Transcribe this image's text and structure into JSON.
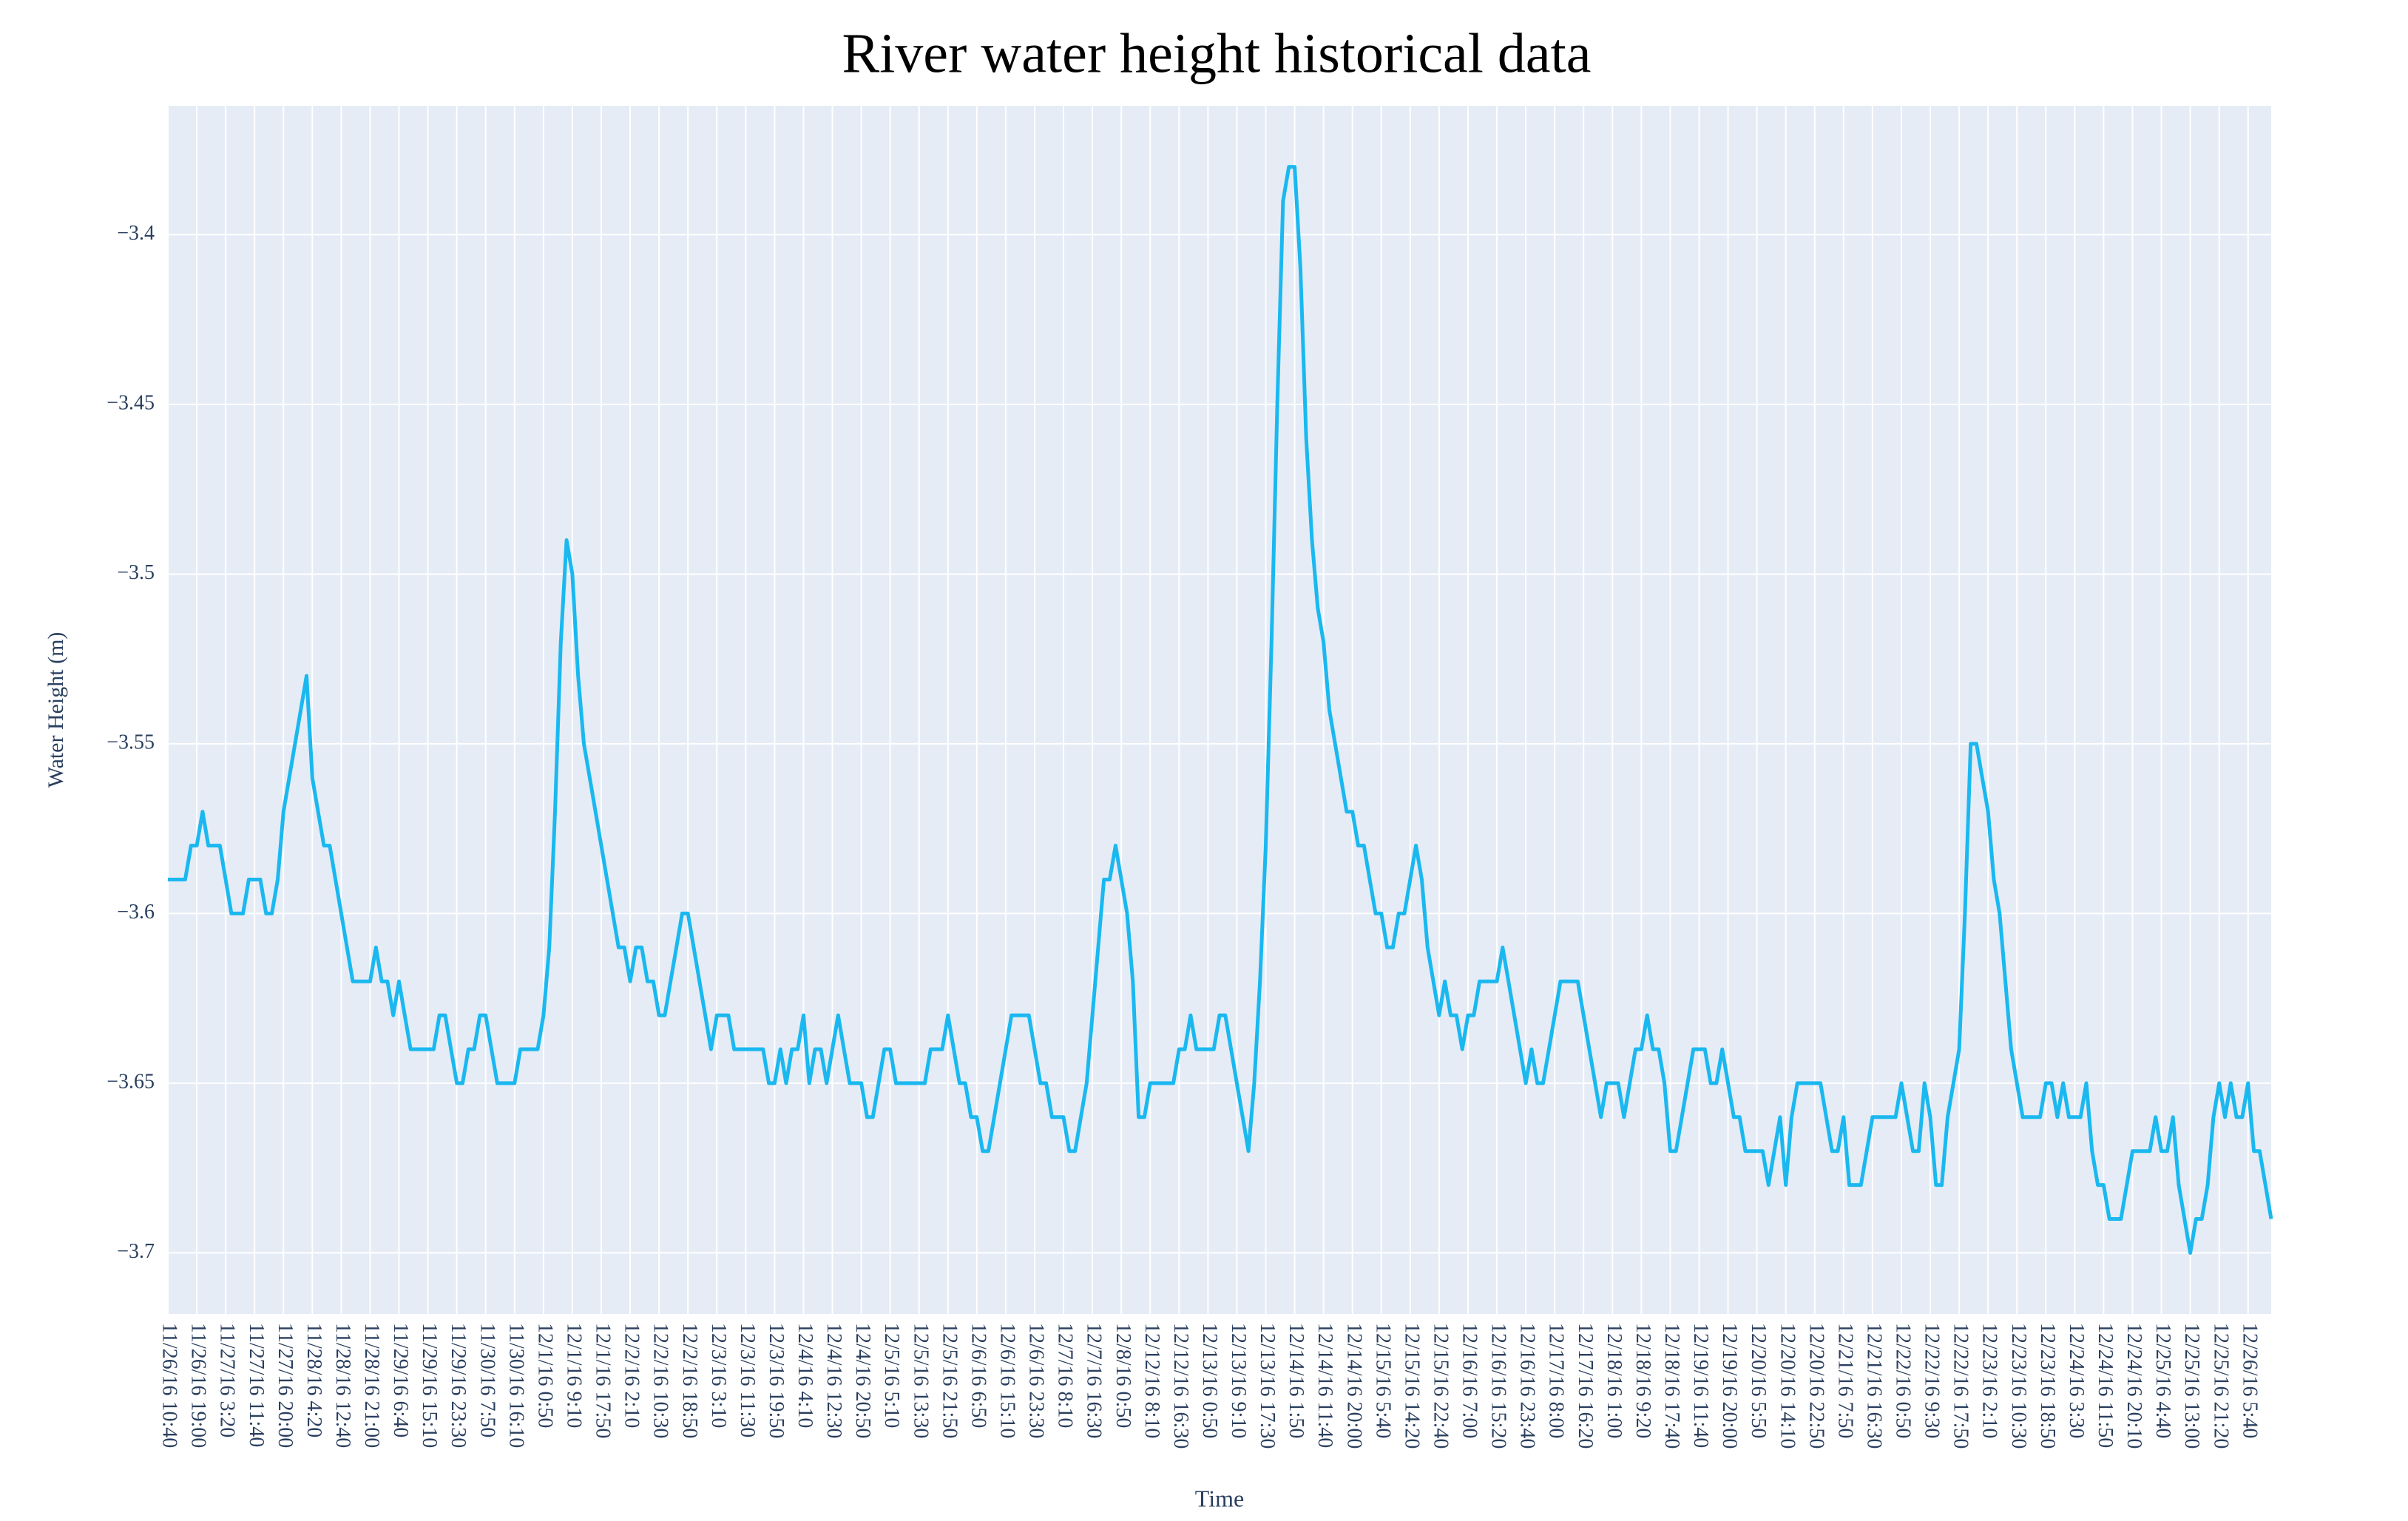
{
  "chart_data": {
    "type": "line",
    "title": "River water height historical data",
    "x_label": "Time",
    "y_label": "Water Height (m)",
    "color": "#1bb8f0",
    "grid": true,
    "ylim": [
      -3.718,
      -3.362
    ],
    "yticks": [
      {
        "value": -3.7,
        "label": "−3.7"
      },
      {
        "value": -3.65,
        "label": "−3.65"
      },
      {
        "value": -3.6,
        "label": "−3.6"
      },
      {
        "value": -3.55,
        "label": "−3.55"
      },
      {
        "value": -3.5,
        "label": "−3.5"
      },
      {
        "value": -3.45,
        "label": "−3.45"
      },
      {
        "value": -3.4,
        "label": "−3.4"
      }
    ],
    "categories": [
      "11/26/16 10:40",
      null,
      null,
      null,
      null,
      "11/26/16 19:00",
      null,
      null,
      null,
      null,
      "11/27/16 3:20",
      null,
      null,
      null,
      null,
      "11/27/16 11:40",
      null,
      null,
      null,
      null,
      "11/27/16 20:00",
      null,
      null,
      null,
      null,
      "11/28/16 4:20",
      null,
      null,
      null,
      null,
      "11/28/16 12:40",
      null,
      null,
      null,
      null,
      "11/28/16 21:00",
      null,
      null,
      null,
      null,
      "11/29/16 6:40",
      null,
      null,
      null,
      null,
      "11/29/16 15:10",
      null,
      null,
      null,
      null,
      "11/29/16 23:30",
      null,
      null,
      null,
      null,
      "11/30/16 7:50",
      null,
      null,
      null,
      null,
      "11/30/16 16:10",
      null,
      null,
      null,
      null,
      "12/1/16 0:50",
      null,
      null,
      null,
      null,
      "12/1/16 9:10",
      null,
      null,
      null,
      null,
      "12/1/16 17:50",
      null,
      null,
      null,
      null,
      "12/2/16 2:10",
      null,
      null,
      null,
      null,
      "12/2/16 10:30",
      null,
      null,
      null,
      null,
      "12/2/16 18:50",
      null,
      null,
      null,
      null,
      "12/3/16 3:10",
      null,
      null,
      null,
      null,
      "12/3/16 11:30",
      null,
      null,
      null,
      null,
      "12/3/16 19:50",
      null,
      null,
      null,
      null,
      "12/4/16 4:10",
      null,
      null,
      null,
      null,
      "12/4/16 12:30",
      null,
      null,
      null,
      null,
      "12/4/16 20:50",
      null,
      null,
      null,
      null,
      "12/5/16 5:10",
      null,
      null,
      null,
      null,
      "12/5/16 13:30",
      null,
      null,
      null,
      null,
      "12/5/16 21:50",
      null,
      null,
      null,
      null,
      "12/6/16 6:50",
      null,
      null,
      null,
      null,
      "12/6/16 15:10",
      null,
      null,
      null,
      null,
      "12/6/16 23:30",
      null,
      null,
      null,
      null,
      "12/7/16 8:10",
      null,
      null,
      null,
      null,
      "12/7/16 16:30",
      null,
      null,
      null,
      null,
      "12/8/16 0:50",
      null,
      null,
      null,
      null,
      "12/12/16 8:10",
      null,
      null,
      null,
      null,
      "12/12/16 16:30",
      null,
      null,
      null,
      null,
      "12/13/16 0:50",
      null,
      null,
      null,
      null,
      "12/13/16 9:10",
      null,
      null,
      null,
      null,
      "12/13/16 17:30",
      null,
      null,
      null,
      null,
      "12/14/16 1:50",
      null,
      null,
      null,
      null,
      "12/14/16 11:40",
      null,
      null,
      null,
      null,
      "12/14/16 20:00",
      null,
      null,
      null,
      null,
      "12/15/16 5:40",
      null,
      null,
      null,
      null,
      "12/15/16 14:20",
      null,
      null,
      null,
      null,
      "12/15/16 22:40",
      null,
      null,
      null,
      null,
      "12/16/16 7:00",
      null,
      null,
      null,
      null,
      "12/16/16 15:20",
      null,
      null,
      null,
      null,
      "12/16/16 23:40",
      null,
      null,
      null,
      null,
      "12/17/16 8:00",
      null,
      null,
      null,
      null,
      "12/17/16 16:20",
      null,
      null,
      null,
      null,
      "12/18/16 1:00",
      null,
      null,
      null,
      null,
      "12/18/16 9:20",
      null,
      null,
      null,
      null,
      "12/18/16 17:40",
      null,
      null,
      null,
      null,
      "12/19/16 11:40",
      null,
      null,
      null,
      null,
      "12/19/16 20:00",
      null,
      null,
      null,
      null,
      "12/20/16 5:50",
      null,
      null,
      null,
      null,
      "12/20/16 14:10",
      null,
      null,
      null,
      null,
      "12/20/16 22:50",
      null,
      null,
      null,
      null,
      "12/21/16 7:50",
      null,
      null,
      null,
      null,
      "12/21/16 16:30",
      null,
      null,
      null,
      null,
      "12/22/16 0:50",
      null,
      null,
      null,
      null,
      "12/22/16 9:30",
      null,
      null,
      null,
      null,
      "12/22/16 17:50",
      null,
      null,
      null,
      null,
      "12/23/16 2:10",
      null,
      null,
      null,
      null,
      "12/23/16 10:30",
      null,
      null,
      null,
      null,
      "12/23/16 18:50",
      null,
      null,
      null,
      null,
      "12/24/16 3:30",
      null,
      null,
      null,
      null,
      "12/24/16 11:50",
      null,
      null,
      null,
      null,
      "12/24/16 20:10",
      null,
      null,
      null,
      null,
      "12/25/16 4:40",
      null,
      null,
      null,
      null,
      "12/25/16 13:00",
      null,
      null,
      null,
      null,
      "12/25/16 21:20",
      null,
      null,
      null,
      null,
      "12/26/16 5:40",
      null,
      null,
      null,
      null
    ],
    "values": [
      -3.59,
      -3.59,
      -3.59,
      -3.59,
      -3.58,
      -3.58,
      -3.57,
      -3.58,
      -3.58,
      -3.58,
      -3.59,
      -3.6,
      -3.6,
      -3.6,
      -3.59,
      -3.59,
      -3.59,
      -3.6,
      -3.6,
      -3.59,
      -3.57,
      -3.56,
      -3.55,
      -3.54,
      -3.53,
      -3.56,
      -3.57,
      -3.58,
      -3.58,
      -3.59,
      -3.6,
      -3.61,
      -3.62,
      -3.62,
      -3.62,
      -3.62,
      -3.61,
      -3.62,
      -3.62,
      -3.63,
      -3.62,
      -3.63,
      -3.64,
      -3.64,
      -3.64,
      -3.64,
      -3.64,
      -3.63,
      -3.63,
      -3.64,
      -3.65,
      -3.65,
      -3.64,
      -3.64,
      -3.63,
      -3.63,
      -3.64,
      -3.65,
      -3.65,
      -3.65,
      -3.65,
      -3.64,
      -3.64,
      -3.64,
      -3.64,
      -3.63,
      -3.61,
      -3.57,
      -3.52,
      -3.49,
      -3.5,
      -3.53,
      -3.55,
      -3.56,
      -3.57,
      -3.58,
      -3.59,
      -3.6,
      -3.61,
      -3.61,
      -3.62,
      -3.61,
      -3.61,
      -3.62,
      -3.62,
      -3.63,
      -3.63,
      -3.62,
      -3.61,
      -3.6,
      -3.6,
      -3.61,
      -3.62,
      -3.63,
      -3.64,
      -3.63,
      -3.63,
      -3.63,
      -3.64,
      -3.64,
      -3.64,
      -3.64,
      -3.64,
      -3.64,
      -3.65,
      -3.65,
      -3.64,
      -3.65,
      -3.64,
      -3.64,
      -3.63,
      -3.65,
      -3.64,
      -3.64,
      -3.65,
      -3.64,
      -3.63,
      -3.64,
      -3.65,
      -3.65,
      -3.65,
      -3.66,
      -3.66,
      -3.65,
      -3.64,
      -3.64,
      -3.65,
      -3.65,
      -3.65,
      -3.65,
      -3.65,
      -3.65,
      -3.64,
      -3.64,
      -3.64,
      -3.63,
      -3.64,
      -3.65,
      -3.65,
      -3.66,
      -3.66,
      -3.67,
      -3.67,
      -3.66,
      -3.65,
      -3.64,
      -3.63,
      -3.63,
      -3.63,
      -3.63,
      -3.64,
      -3.65,
      -3.65,
      -3.66,
      -3.66,
      -3.66,
      -3.67,
      -3.67,
      -3.66,
      -3.65,
      -3.63,
      -3.61,
      -3.59,
      -3.59,
      -3.58,
      -3.59,
      -3.6,
      -3.62,
      -3.66,
      -3.66,
      -3.65,
      -3.65,
      -3.65,
      -3.65,
      -3.65,
      -3.64,
      -3.64,
      -3.63,
      -3.64,
      -3.64,
      -3.64,
      -3.64,
      -3.63,
      -3.63,
      -3.64,
      -3.65,
      -3.66,
      -3.67,
      -3.65,
      -3.62,
      -3.58,
      -3.52,
      -3.45,
      -3.39,
      -3.38,
      -3.38,
      -3.41,
      -3.46,
      -3.49,
      -3.51,
      -3.52,
      -3.54,
      -3.55,
      -3.56,
      -3.57,
      -3.57,
      -3.58,
      -3.58,
      -3.59,
      -3.6,
      -3.6,
      -3.61,
      -3.61,
      -3.6,
      -3.6,
      -3.59,
      -3.58,
      -3.59,
      -3.61,
      -3.62,
      -3.63,
      -3.62,
      -3.63,
      -3.63,
      -3.64,
      -3.63,
      -3.63,
      -3.62,
      -3.62,
      -3.62,
      -3.62,
      -3.61,
      -3.62,
      -3.63,
      -3.64,
      -3.65,
      -3.64,
      -3.65,
      -3.65,
      -3.64,
      -3.63,
      -3.62,
      -3.62,
      -3.62,
      -3.62,
      -3.63,
      -3.64,
      -3.65,
      -3.66,
      -3.65,
      -3.65,
      -3.65,
      -3.66,
      -3.65,
      -3.64,
      -3.64,
      -3.63,
      -3.64,
      -3.64,
      -3.65,
      -3.67,
      -3.67,
      -3.66,
      -3.65,
      -3.64,
      -3.64,
      -3.64,
      -3.65,
      -3.65,
      -3.64,
      -3.65,
      -3.66,
      -3.66,
      -3.67,
      -3.67,
      -3.67,
      -3.67,
      -3.68,
      -3.67,
      -3.66,
      -3.68,
      -3.66,
      -3.65,
      -3.65,
      -3.65,
      -3.65,
      -3.65,
      -3.66,
      -3.67,
      -3.67,
      -3.66,
      -3.68,
      -3.68,
      -3.68,
      -3.67,
      -3.66,
      -3.66,
      -3.66,
      -3.66,
      -3.66,
      -3.65,
      -3.66,
      -3.67,
      -3.67,
      -3.65,
      -3.66,
      -3.68,
      -3.68,
      -3.66,
      -3.65,
      -3.64,
      -3.6,
      -3.55,
      -3.55,
      -3.56,
      -3.57,
      -3.59,
      -3.6,
      -3.62,
      -3.64,
      -3.65,
      -3.66,
      -3.66,
      -3.66,
      -3.66,
      -3.65,
      -3.65,
      -3.66,
      -3.65,
      -3.66,
      -3.66,
      -3.66,
      -3.65,
      -3.67,
      -3.68,
      -3.68,
      -3.69,
      -3.69,
      -3.69,
      -3.68,
      -3.67,
      -3.67,
      -3.67,
      -3.67,
      -3.66,
      -3.67,
      -3.67,
      -3.66,
      -3.68,
      -3.69,
      -3.7,
      -3.69,
      -3.69,
      -3.68,
      -3.66,
      -3.65,
      -3.66,
      -3.65,
      -3.66,
      -3.66,
      -3.65,
      -3.67,
      -3.67,
      -3.68,
      -3.69
    ]
  }
}
